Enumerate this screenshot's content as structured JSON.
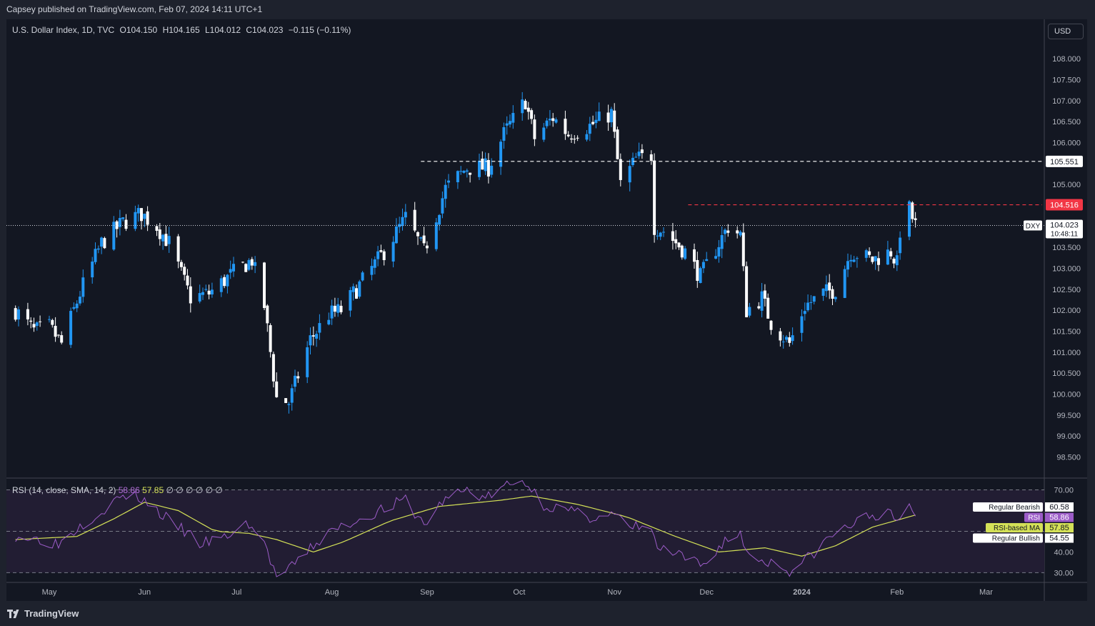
{
  "header": {
    "published": "Capsey published on TradingView.com, Feb 07, 2024 14:11 UTC+1"
  },
  "legend": {
    "symbol": "U.S. Dollar Index, 1D, TVC",
    "open": "O104.150",
    "high": "H104.165",
    "low": "L104.012",
    "close": "C104.023",
    "change": "−0.115 (−0.11%)"
  },
  "currency_button": "USD",
  "rsi_legend": {
    "label": "RSI (14, close, SMA, 14, 2)",
    "rsi": "58.86",
    "ma": "57.85",
    "extras": "∅ ∅ ∅ ∅ ∅ ∅"
  },
  "footer": {
    "brand": "TradingView"
  },
  "colors": {
    "background": "#131722",
    "up": "#2196f3",
    "down": "#ffffff",
    "resistance_red": "#f23645",
    "rsi": "#9c5cc8",
    "rsi_ma": "#d4e157",
    "rsi_band": "#221d33"
  },
  "chart_data": [
    {
      "type": "candlestick",
      "title": "U.S. Dollar Index, 1D, TVC",
      "symbol": "DXY",
      "ylim": [
        98.2,
        108.6
      ],
      "y_ticks": [
        "108.000",
        "107.500",
        "107.000",
        "106.500",
        "106.000",
        "105.000",
        "103.500",
        "103.000",
        "102.500",
        "102.000",
        "101.500",
        "101.000",
        "100.500",
        "100.000",
        "99.500",
        "99.000",
        "98.500"
      ],
      "x_ticks": [
        {
          "label": "May",
          "date": "2023-05-01"
        },
        {
          "label": "Jun",
          "date": "2023-06-01"
        },
        {
          "label": "Jul",
          "date": "2023-07-01"
        },
        {
          "label": "Aug",
          "date": "2023-08-01"
        },
        {
          "label": "Sep",
          "date": "2023-09-01"
        },
        {
          "label": "Oct",
          "date": "2023-10-01"
        },
        {
          "label": "Nov",
          "date": "2023-11-01"
        },
        {
          "label": "Dec",
          "date": "2023-12-01"
        },
        {
          "label": "2024",
          "date": "2024-01-01",
          "bold": true
        },
        {
          "label": "Feb",
          "date": "2024-02-01"
        },
        {
          "label": "Mar",
          "date": "2024-03-01"
        }
      ],
      "anchors": [
        [
          "2023-04-20",
          102.0
        ],
        [
          "2023-04-26",
          101.5
        ],
        [
          "2023-05-01",
          101.6
        ],
        [
          "2023-05-05",
          101.2
        ],
        [
          "2023-05-12",
          102.6
        ],
        [
          "2023-05-18",
          103.6
        ],
        [
          "2023-05-25",
          104.1
        ],
        [
          "2023-05-31",
          104.3
        ],
        [
          "2023-06-05",
          104.0
        ],
        [
          "2023-06-09",
          103.6
        ],
        [
          "2023-06-16",
          102.3
        ],
        [
          "2023-06-22",
          102.4
        ],
        [
          "2023-06-30",
          102.9
        ],
        [
          "2023-07-06",
          103.2
        ],
        [
          "2023-07-10",
          102.1
        ],
        [
          "2023-07-14",
          99.9
        ],
        [
          "2023-07-18",
          99.8
        ],
        [
          "2023-07-25",
          101.3
        ],
        [
          "2023-07-31",
          101.9
        ],
        [
          "2023-08-04",
          102.0
        ],
        [
          "2023-08-10",
          102.6
        ],
        [
          "2023-08-18",
          103.4
        ],
        [
          "2023-08-25",
          104.2
        ],
        [
          "2023-08-31",
          103.4
        ],
        [
          "2023-09-07",
          104.9
        ],
        [
          "2023-09-14",
          105.4
        ],
        [
          "2023-09-21",
          105.4
        ],
        [
          "2023-09-26",
          106.2
        ],
        [
          "2023-10-03",
          107.0
        ],
        [
          "2023-10-06",
          106.1
        ],
        [
          "2023-10-12",
          106.6
        ],
        [
          "2023-10-17",
          106.2
        ],
        [
          "2023-10-24",
          106.4
        ],
        [
          "2023-10-31",
          106.7
        ],
        [
          "2023-11-03",
          105.0
        ],
        [
          "2023-11-08",
          105.6
        ],
        [
          "2023-11-13",
          105.7
        ],
        [
          "2023-11-14",
          104.0
        ],
        [
          "2023-11-17",
          103.9
        ],
        [
          "2023-11-24",
          103.4
        ],
        [
          "2023-11-29",
          102.8
        ],
        [
          "2023-12-05",
          103.6
        ],
        [
          "2023-12-08",
          104.0
        ],
        [
          "2023-12-12",
          103.8
        ],
        [
          "2023-12-14",
          102.0
        ],
        [
          "2023-12-19",
          102.3
        ],
        [
          "2023-12-22",
          101.7
        ],
        [
          "2023-12-28",
          101.2
        ],
        [
          "2024-01-02",
          102.1
        ],
        [
          "2024-01-08",
          102.4
        ],
        [
          "2024-01-12",
          102.5
        ],
        [
          "2024-01-17",
          103.4
        ],
        [
          "2024-01-24",
          103.2
        ],
        [
          "2024-01-30",
          103.4
        ],
        [
          "2024-02-01",
          103.1
        ],
        [
          "2024-02-02",
          103.9
        ],
        [
          "2024-02-05",
          104.4
        ],
        [
          "2024-02-06",
          104.2
        ],
        [
          "2024-02-07",
          104.02
        ]
      ],
      "horizontal_lines": [
        {
          "price": 105.551,
          "label": "105.551",
          "color": "#ffffff",
          "from": "2023-08-30"
        },
        {
          "price": 104.516,
          "label": "104.516",
          "color": "#f23645",
          "from": "2023-11-25"
        }
      ],
      "last_price": {
        "price": 104.023,
        "label": "104.023",
        "countdown": "10:48:11",
        "symbol": "DXY"
      }
    },
    {
      "type": "line",
      "title": "RSI (14, close, SMA, 14, 2)",
      "ylim": [
        26,
        75
      ],
      "y_ticks": [
        "70.00",
        "40.00",
        "30.00"
      ],
      "band": [
        30,
        70
      ],
      "guide_lines": [
        70,
        50,
        30
      ],
      "rsi_anchors": [
        [
          "2023-04-20",
          48
        ],
        [
          "2023-04-28",
          46
        ],
        [
          "2023-05-04",
          44
        ],
        [
          "2023-05-11",
          53
        ],
        [
          "2023-05-18",
          60
        ],
        [
          "2023-05-25",
          67
        ],
        [
          "2023-05-31",
          66
        ],
        [
          "2023-06-05",
          60
        ],
        [
          "2023-06-09",
          55
        ],
        [
          "2023-06-14",
          50
        ],
        [
          "2023-06-19",
          44
        ],
        [
          "2023-06-26",
          46
        ],
        [
          "2023-07-05",
          54
        ],
        [
          "2023-07-10",
          44
        ],
        [
          "2023-07-14",
          28
        ],
        [
          "2023-07-18",
          31
        ],
        [
          "2023-07-25",
          42
        ],
        [
          "2023-08-01",
          50
        ],
        [
          "2023-08-10",
          56
        ],
        [
          "2023-08-18",
          61
        ],
        [
          "2023-08-25",
          65
        ],
        [
          "2023-08-31",
          53
        ],
        [
          "2023-09-07",
          66
        ],
        [
          "2023-09-14",
          70
        ],
        [
          "2023-09-20",
          66
        ],
        [
          "2023-09-27",
          72
        ],
        [
          "2023-10-03",
          74
        ],
        [
          "2023-10-09",
          63
        ],
        [
          "2023-10-16",
          60
        ],
        [
          "2023-10-24",
          57
        ],
        [
          "2023-11-01",
          58
        ],
        [
          "2023-11-06",
          51
        ],
        [
          "2023-11-12",
          54
        ],
        [
          "2023-11-15",
          42
        ],
        [
          "2023-11-22",
          38
        ],
        [
          "2023-11-30",
          33
        ],
        [
          "2023-12-07",
          46
        ],
        [
          "2023-12-12",
          48
        ],
        [
          "2023-12-15",
          38
        ],
        [
          "2023-12-22",
          35
        ],
        [
          "2023-12-28",
          31
        ],
        [
          "2024-01-03",
          37
        ],
        [
          "2024-01-10",
          47
        ],
        [
          "2024-01-17",
          53
        ],
        [
          "2024-01-24",
          58
        ],
        [
          "2024-01-30",
          58
        ],
        [
          "2024-02-01",
          53
        ],
        [
          "2024-02-05",
          63
        ],
        [
          "2024-02-07",
          58.86
        ]
      ],
      "ma_anchors": [
        [
          "2023-04-20",
          46
        ],
        [
          "2023-05-10",
          47.5
        ],
        [
          "2023-05-22",
          56
        ],
        [
          "2023-06-01",
          64
        ],
        [
          "2023-06-12",
          60
        ],
        [
          "2023-06-24",
          50
        ],
        [
          "2023-07-05",
          49
        ],
        [
          "2023-07-14",
          46
        ],
        [
          "2023-07-26",
          40
        ],
        [
          "2023-08-05",
          45
        ],
        [
          "2023-08-20",
          55
        ],
        [
          "2023-09-05",
          62
        ],
        [
          "2023-09-25",
          65
        ],
        [
          "2023-10-05",
          67
        ],
        [
          "2023-10-20",
          63
        ],
        [
          "2023-11-05",
          57
        ],
        [
          "2023-11-20",
          48
        ],
        [
          "2023-12-05",
          40
        ],
        [
          "2023-12-20",
          42
        ],
        [
          "2024-01-01",
          38
        ],
        [
          "2024-01-12",
          43
        ],
        [
          "2024-01-24",
          52
        ],
        [
          "2024-02-07",
          57.85
        ]
      ],
      "value_labels": [
        {
          "label": "Regular Bearish",
          "value": "60.58",
          "bg": "#ffffff",
          "fg": "#131722"
        },
        {
          "label": "RSI",
          "value": "58.86",
          "bg": "#9c5cc8",
          "fg": "#ffffff"
        },
        {
          "label": "RSI-based MA",
          "value": "57.85",
          "bg": "#d4e157",
          "fg": "#131722"
        },
        {
          "label": "Regular Bullish",
          "value": "54.55",
          "bg": "#ffffff",
          "fg": "#131722"
        }
      ]
    }
  ]
}
